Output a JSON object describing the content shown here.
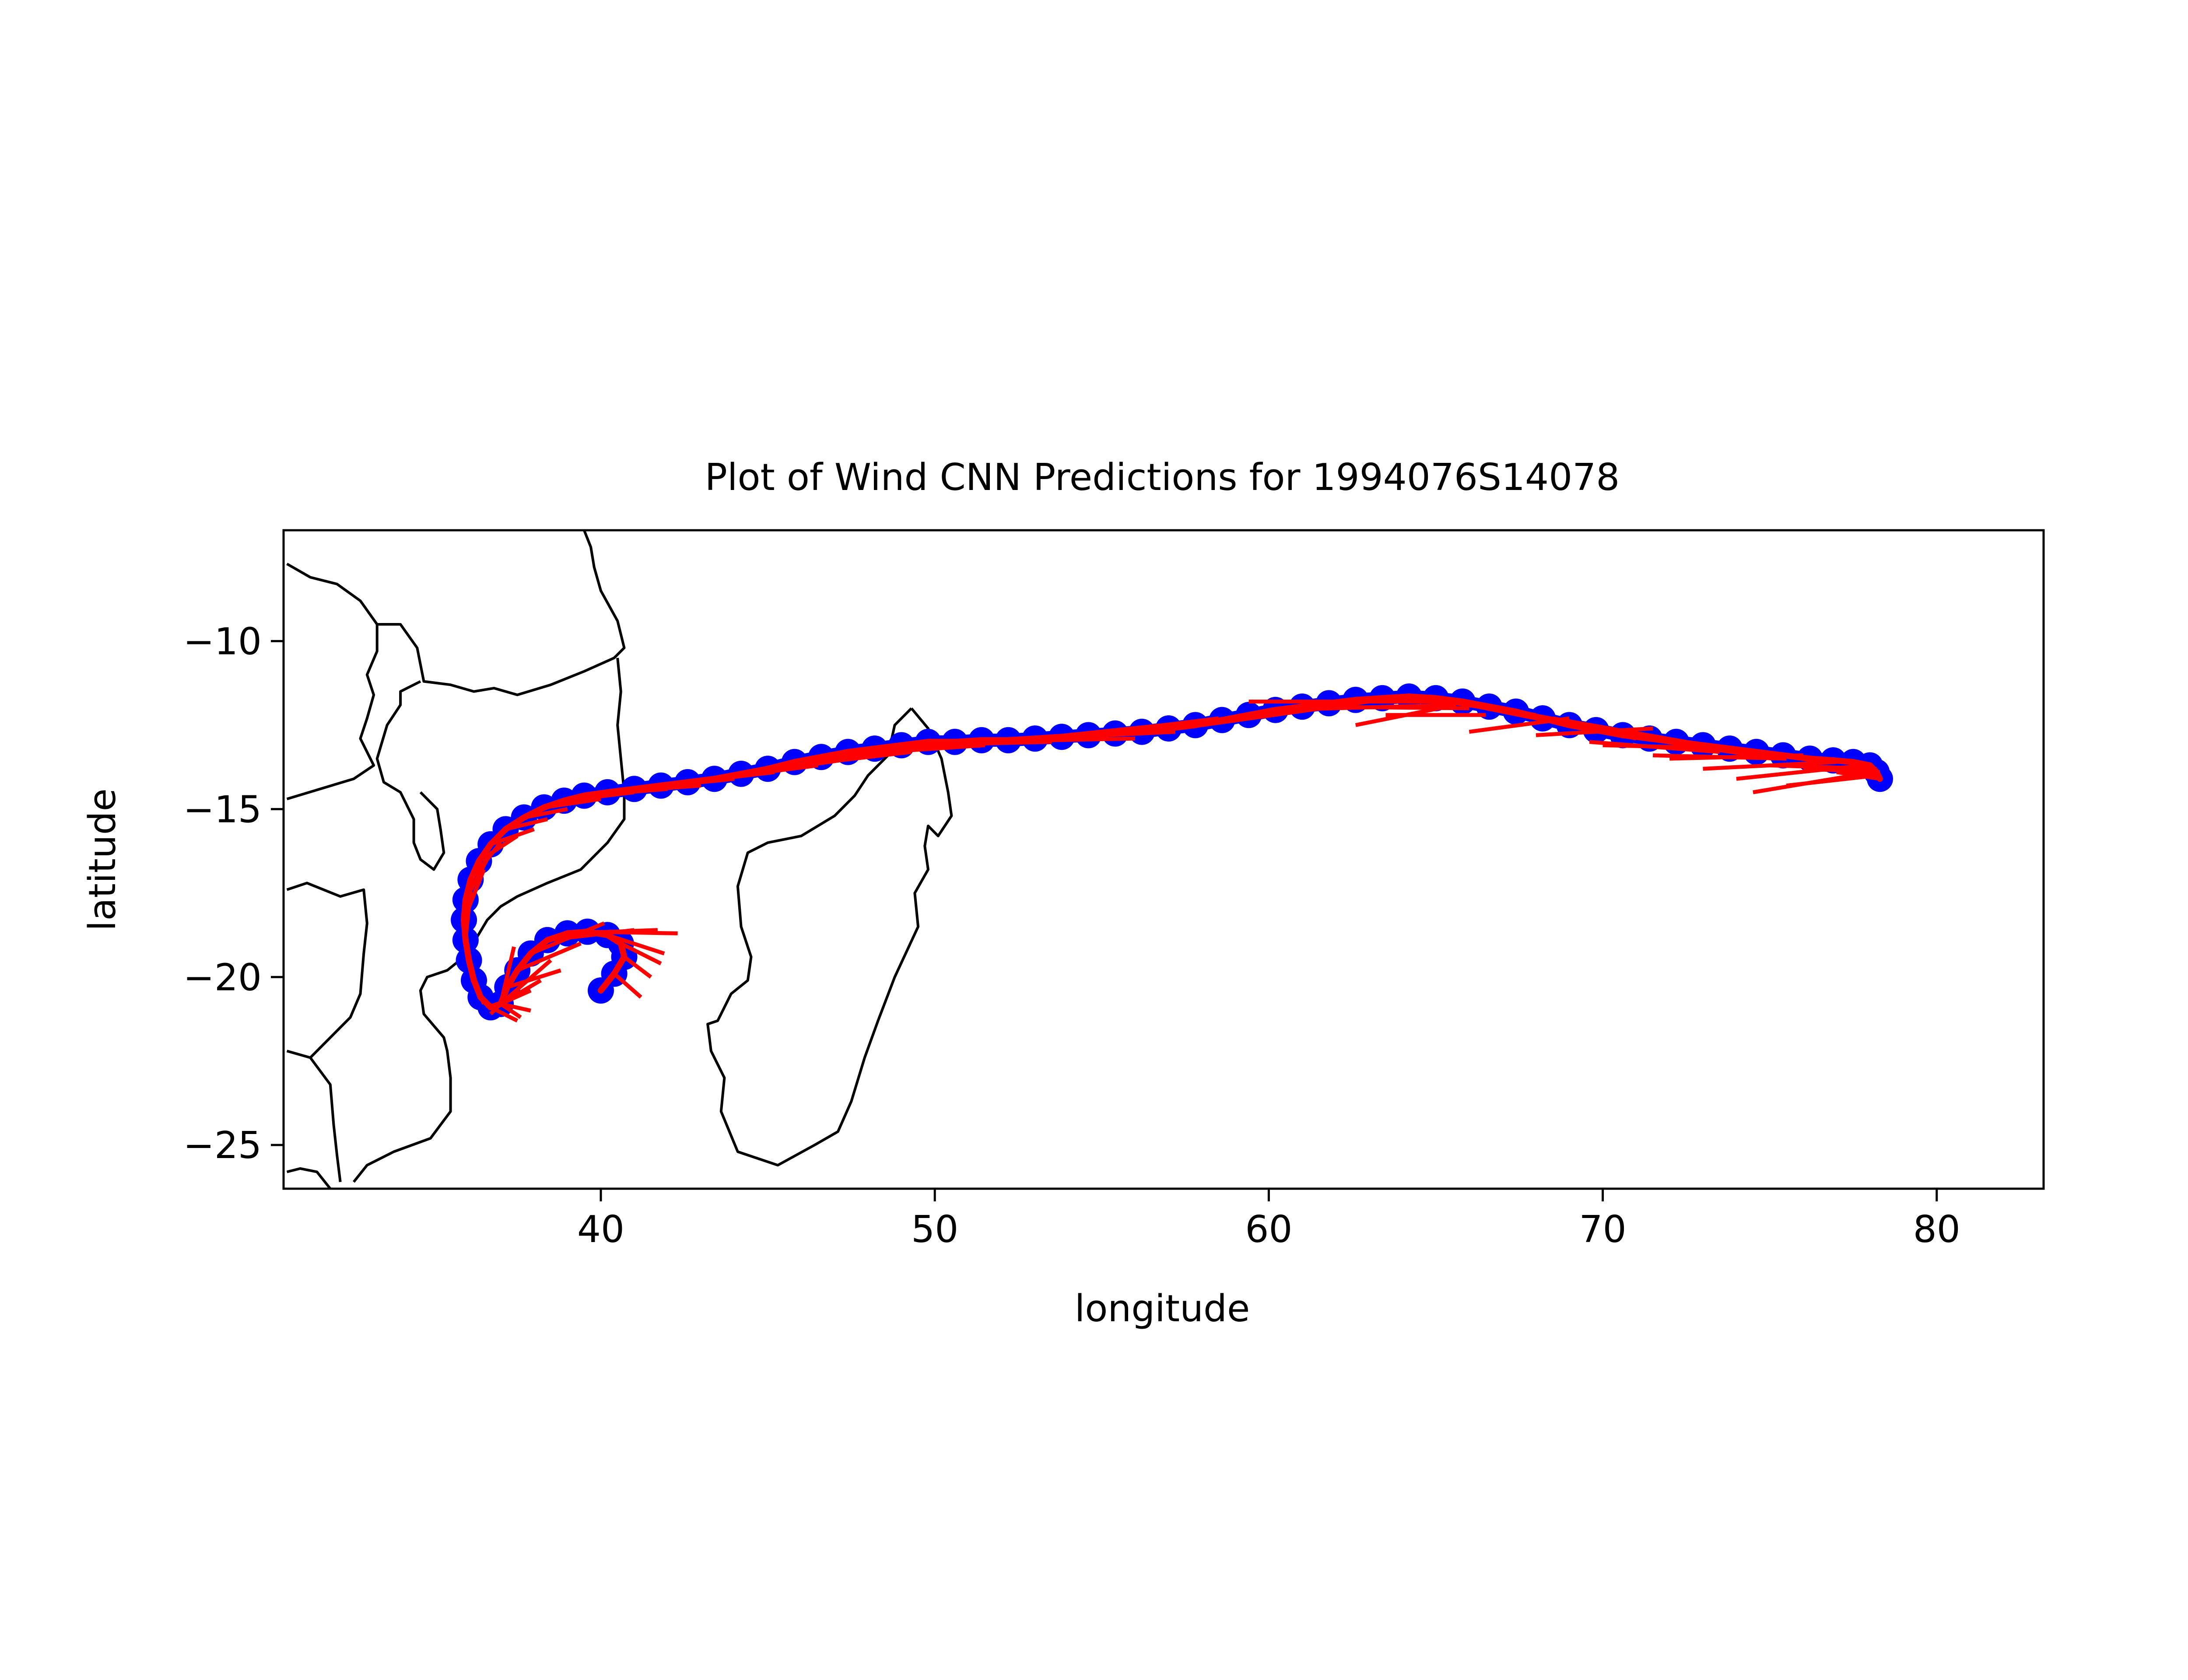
{
  "chart_data": {
    "type": "scatter",
    "title": "Plot of Wind CNN Predictions for 1994076S14078",
    "xlabel": "longitude",
    "ylabel": "latitude",
    "xlim": [
      30.5,
      83.2
    ],
    "ylim": [
      -26.3,
      -6.7
    ],
    "xticks": [
      40,
      50,
      60,
      70,
      80
    ],
    "yticks": [
      -10,
      -15,
      -20,
      -25
    ],
    "xtick_labels": [
      "40",
      "50",
      "60",
      "70",
      "80"
    ],
    "ytick_labels": [
      "−10",
      "−15",
      "−20",
      "−25"
    ],
    "grid": false,
    "legend": "none",
    "colors": {
      "track": "#0000ff",
      "prediction": "#ff0000",
      "coast": "#000000"
    },
    "track": [
      [
        40.0,
        -20.4
      ],
      [
        40.4,
        -19.9
      ],
      [
        40.7,
        -19.4
      ],
      [
        40.6,
        -19.0
      ],
      [
        40.2,
        -18.75
      ],
      [
        39.6,
        -18.65
      ],
      [
        39.0,
        -18.7
      ],
      [
        38.4,
        -18.9
      ],
      [
        37.9,
        -19.3
      ],
      [
        37.5,
        -19.8
      ],
      [
        37.2,
        -20.3
      ],
      [
        37.0,
        -20.8
      ],
      [
        36.7,
        -20.9
      ],
      [
        36.4,
        -20.6
      ],
      [
        36.2,
        -20.1
      ],
      [
        36.05,
        -19.5
      ],
      [
        35.95,
        -18.9
      ],
      [
        35.9,
        -18.3
      ],
      [
        35.95,
        -17.7
      ],
      [
        36.1,
        -17.1
      ],
      [
        36.35,
        -16.55
      ],
      [
        36.7,
        -16.05
      ],
      [
        37.15,
        -15.6
      ],
      [
        37.7,
        -15.25
      ],
      [
        38.3,
        -14.95
      ],
      [
        38.9,
        -14.75
      ],
      [
        39.5,
        -14.6
      ],
      [
        40.2,
        -14.5
      ],
      [
        41.0,
        -14.4
      ],
      [
        41.8,
        -14.3
      ],
      [
        42.6,
        -14.2
      ],
      [
        43.4,
        -14.1
      ],
      [
        44.2,
        -13.95
      ],
      [
        45.0,
        -13.8
      ],
      [
        45.8,
        -13.6
      ],
      [
        46.6,
        -13.45
      ],
      [
        47.4,
        -13.3
      ],
      [
        48.2,
        -13.2
      ],
      [
        49.0,
        -13.1
      ],
      [
        49.8,
        -13.0
      ],
      [
        50.6,
        -13.0
      ],
      [
        51.4,
        -12.95
      ],
      [
        52.2,
        -12.95
      ],
      [
        53.0,
        -12.9
      ],
      [
        53.8,
        -12.85
      ],
      [
        54.6,
        -12.8
      ],
      [
        55.4,
        -12.75
      ],
      [
        56.2,
        -12.7
      ],
      [
        57.0,
        -12.6
      ],
      [
        57.8,
        -12.5
      ],
      [
        58.6,
        -12.35
      ],
      [
        59.4,
        -12.2
      ],
      [
        60.2,
        -12.05
      ],
      [
        61.0,
        -11.95
      ],
      [
        61.8,
        -11.85
      ],
      [
        62.6,
        -11.75
      ],
      [
        63.4,
        -11.7
      ],
      [
        64.2,
        -11.65
      ],
      [
        65.0,
        -11.7
      ],
      [
        65.8,
        -11.8
      ],
      [
        66.6,
        -11.95
      ],
      [
        67.4,
        -12.1
      ],
      [
        68.2,
        -12.3
      ],
      [
        69.0,
        -12.5
      ],
      [
        69.8,
        -12.65
      ],
      [
        70.6,
        -12.8
      ],
      [
        71.4,
        -12.9
      ],
      [
        72.2,
        -13.0
      ],
      [
        73.0,
        -13.1
      ],
      [
        73.8,
        -13.2
      ],
      [
        74.6,
        -13.3
      ],
      [
        75.4,
        -13.4
      ],
      [
        76.2,
        -13.5
      ],
      [
        76.9,
        -13.55
      ],
      [
        77.5,
        -13.6
      ],
      [
        78.0,
        -13.7
      ],
      [
        78.2,
        -13.9
      ],
      [
        78.3,
        -14.1
      ]
    ],
    "predictions": [
      [
        37.0,
        -20.8,
        36.7,
        -21.1
      ],
      [
        37.0,
        -20.8,
        37.9,
        -20.4
      ],
      [
        37.0,
        -20.8,
        37.6,
        -21.2
      ],
      [
        37.0,
        -20.8,
        38.2,
        -20.1
      ],
      [
        37.0,
        -20.8,
        37.4,
        -19.1
      ],
      [
        37.0,
        -20.8,
        38.5,
        -19.5
      ],
      [
        37.2,
        -20.3,
        38.8,
        -19.8
      ],
      [
        37.5,
        -19.8,
        39.4,
        -19.0
      ],
      [
        37.9,
        -19.3,
        40.1,
        -18.4
      ],
      [
        38.4,
        -18.9,
        41.0,
        -18.6
      ],
      [
        39.0,
        -18.7,
        41.7,
        -18.6
      ],
      [
        39.6,
        -18.65,
        42.3,
        -18.7
      ],
      [
        40.2,
        -18.75,
        41.9,
        -19.3
      ],
      [
        40.6,
        -19.0,
        41.8,
        -19.6
      ],
      [
        40.7,
        -19.4,
        41.5,
        -20.0
      ],
      [
        40.4,
        -19.9,
        41.2,
        -20.6
      ],
      [
        37.0,
        -20.8,
        37.9,
        -21.0
      ],
      [
        36.7,
        -20.9,
        37.5,
        -21.3
      ],
      [
        36.2,
        -20.1,
        36.5,
        -20.8
      ],
      [
        35.95,
        -18.9,
        36.1,
        -17.4
      ],
      [
        35.9,
        -18.3,
        36.5,
        -16.8
      ],
      [
        35.95,
        -17.7,
        36.7,
        -16.3
      ],
      [
        36.1,
        -17.1,
        37.0,
        -16.0
      ],
      [
        36.35,
        -16.55,
        37.5,
        -15.8
      ],
      [
        36.7,
        -16.05,
        38.0,
        -15.6
      ],
      [
        37.15,
        -15.6,
        38.4,
        -15.3
      ],
      [
        37.7,
        -15.25,
        39.0,
        -15.0
      ],
      [
        38.3,
        -14.95,
        40.0,
        -14.7
      ],
      [
        38.9,
        -14.75,
        41.0,
        -14.5
      ],
      [
        39.5,
        -14.6,
        42.0,
        -14.4
      ],
      [
        40.2,
        -14.5,
        43.0,
        -14.3
      ],
      [
        41.0,
        -14.4,
        44.0,
        -14.1
      ],
      [
        41.8,
        -14.3,
        45.2,
        -13.9
      ],
      [
        42.6,
        -14.2,
        46.5,
        -13.7
      ],
      [
        43.4,
        -14.1,
        47.5,
        -13.5
      ],
      [
        44.2,
        -13.95,
        48.6,
        -13.3
      ],
      [
        45.0,
        -13.8,
        49.3,
        -13.3
      ],
      [
        46.0,
        -13.6,
        50.5,
        -13.1
      ],
      [
        47.0,
        -13.4,
        51.5,
        -13.1
      ],
      [
        48.0,
        -13.2,
        52.6,
        -13.0
      ],
      [
        49.0,
        -13.1,
        53.5,
        -13.0
      ],
      [
        50.0,
        -13.0,
        55.0,
        -12.9
      ],
      [
        51.0,
        -13.0,
        56.0,
        -12.9
      ],
      [
        52.0,
        -12.95,
        57.2,
        -12.7
      ],
      [
        53.0,
        -12.9,
        57.8,
        -12.4
      ],
      [
        54.0,
        -12.85,
        58.5,
        -12.3
      ],
      [
        55.0,
        -12.8,
        60.0,
        -12.2
      ],
      [
        56.0,
        -12.7,
        61.0,
        -12.0
      ],
      [
        57.0,
        -12.6,
        62.0,
        -11.9
      ],
      [
        58.0,
        -12.5,
        63.0,
        -11.8
      ],
      [
        59.4,
        -11.8,
        65.2,
        -11.8
      ],
      [
        60.2,
        -12.05,
        65.5,
        -11.9
      ],
      [
        61.0,
        -11.95,
        66.0,
        -12.0
      ],
      [
        62.6,
        -12.5,
        65.6,
        -11.9
      ],
      [
        63.5,
        -12.2,
        66.5,
        -12.2
      ],
      [
        64.2,
        -11.65,
        68.0,
        -12.2
      ],
      [
        65.0,
        -11.7,
        68.5,
        -12.4
      ],
      [
        66.0,
        -12.7,
        69.0,
        -12.3
      ],
      [
        66.6,
        -11.95,
        70.0,
        -12.6
      ],
      [
        67.4,
        -12.1,
        71.0,
        -12.9
      ],
      [
        68.0,
        -12.8,
        71.5,
        -12.6
      ],
      [
        68.5,
        -12.3,
        72.5,
        -13.0
      ],
      [
        69.0,
        -12.5,
        73.2,
        -13.1
      ],
      [
        69.6,
        -13.0,
        73.5,
        -13.3
      ],
      [
        70.0,
        -13.1,
        74.0,
        -13.2
      ],
      [
        70.6,
        -12.8,
        74.5,
        -13.4
      ],
      [
        71.5,
        -13.4,
        75.5,
        -13.5
      ],
      [
        72.0,
        -13.5,
        76.0,
        -13.4
      ],
      [
        73.0,
        -13.8,
        77.0,
        -13.6
      ],
      [
        74.0,
        -14.1,
        77.8,
        -13.7
      ],
      [
        74.5,
        -14.5,
        78.1,
        -13.9
      ],
      [
        75.0,
        -13.7,
        78.2,
        -13.8
      ],
      [
        75.5,
        -14.3,
        78.2,
        -14.0
      ],
      [
        76.0,
        -13.8,
        78.3,
        -13.9
      ],
      [
        77.0,
        -13.9,
        78.3,
        -14.1
      ]
    ],
    "coastlines": [
      [
        [
          30.6,
          -7.7
        ],
        [
          31.3,
          -8.1
        ],
        [
          32.1,
          -8.3
        ],
        [
          32.8,
          -8.8
        ],
        [
          33.3,
          -9.5
        ],
        [
          33.3,
          -10.3
        ],
        [
          33.0,
          -11.0
        ],
        [
          33.2,
          -11.6
        ],
        [
          33.0,
          -12.3
        ],
        [
          32.8,
          -12.9
        ],
        [
          33.2,
          -13.7
        ],
        [
          32.6,
          -14.1
        ],
        [
          30.6,
          -14.7
        ]
      ],
      [
        [
          33.3,
          -9.5
        ],
        [
          34.0,
          -9.5
        ],
        [
          34.5,
          -10.2
        ],
        [
          34.7,
          -11.2
        ],
        [
          35.5,
          -11.3
        ],
        [
          36.2,
          -11.5
        ],
        [
          36.8,
          -11.4
        ],
        [
          37.5,
          -11.6
        ],
        [
          38.5,
          -11.3
        ],
        [
          39.5,
          -10.9
        ],
        [
          40.4,
          -10.5
        ],
        [
          40.7,
          -10.2
        ],
        [
          40.5,
          -9.4
        ],
        [
          40.0,
          -8.5
        ],
        [
          39.8,
          -7.8
        ],
        [
          39.7,
          -7.2
        ],
        [
          39.5,
          -6.7
        ]
      ],
      [
        [
          40.5,
          -10.5
        ],
        [
          40.6,
          -11.5
        ],
        [
          40.5,
          -12.5
        ],
        [
          40.6,
          -13.5
        ],
        [
          40.7,
          -14.5
        ],
        [
          40.7,
          -15.3
        ],
        [
          40.2,
          -16.0
        ],
        [
          39.4,
          -16.8
        ],
        [
          38.4,
          -17.2
        ],
        [
          37.5,
          -17.6
        ],
        [
          37.0,
          -17.9
        ],
        [
          36.6,
          -18.3
        ],
        [
          36.3,
          -18.8
        ],
        [
          35.9,
          -19.4
        ],
        [
          35.4,
          -19.8
        ],
        [
          34.8,
          -20.0
        ],
        [
          34.6,
          -20.4
        ],
        [
          34.7,
          -21.1
        ],
        [
          35.3,
          -21.8
        ],
        [
          35.4,
          -22.2
        ],
        [
          35.5,
          -23.0
        ],
        [
          35.5,
          -24.0
        ],
        [
          34.9,
          -24.8
        ],
        [
          33.8,
          -25.2
        ],
        [
          33.0,
          -25.6
        ],
        [
          32.6,
          -26.1
        ]
      ],
      [
        [
          34.6,
          -14.5
        ],
        [
          35.1,
          -15.0
        ],
        [
          35.2,
          -15.6
        ],
        [
          35.3,
          -16.3
        ],
        [
          35.0,
          -16.8
        ],
        [
          34.6,
          -16.5
        ],
        [
          34.4,
          -16.0
        ],
        [
          34.4,
          -15.3
        ],
        [
          34.0,
          -14.5
        ],
        [
          33.5,
          -14.2
        ],
        [
          33.3,
          -13.5
        ],
        [
          33.6,
          -12.5
        ],
        [
          34.0,
          -11.9
        ],
        [
          34.0,
          -11.5
        ],
        [
          34.6,
          -11.2
        ]
      ],
      [
        [
          30.6,
          -17.4
        ],
        [
          31.2,
          -17.2
        ],
        [
          32.2,
          -17.6
        ],
        [
          32.9,
          -17.4
        ],
        [
          33.0,
          -18.4
        ],
        [
          32.9,
          -19.3
        ],
        [
          32.8,
          -20.5
        ],
        [
          32.5,
          -21.2
        ],
        [
          31.3,
          -22.4
        ],
        [
          30.6,
          -22.2
        ]
      ],
      [
        [
          31.3,
          -22.4
        ],
        [
          31.9,
          -23.2
        ],
        [
          32.0,
          -24.4
        ],
        [
          32.1,
          -25.3
        ],
        [
          32.2,
          -26.1
        ]
      ],
      [
        [
          30.6,
          -25.8
        ],
        [
          31.0,
          -25.7
        ],
        [
          31.5,
          -25.8
        ],
        [
          31.9,
          -26.3
        ]
      ],
      [
        [
          49.3,
          -12.0
        ],
        [
          49.8,
          -12.6
        ],
        [
          50.2,
          -13.5
        ],
        [
          50.4,
          -14.5
        ],
        [
          50.5,
          -15.2
        ],
        [
          50.1,
          -15.8
        ],
        [
          49.8,
          -15.5
        ],
        [
          49.7,
          -16.1
        ],
        [
          49.8,
          -16.8
        ],
        [
          49.4,
          -17.5
        ],
        [
          49.5,
          -18.5
        ],
        [
          48.8,
          -20.0
        ],
        [
          48.3,
          -21.3
        ],
        [
          47.9,
          -22.4
        ],
        [
          47.5,
          -23.7
        ],
        [
          47.1,
          -24.6
        ],
        [
          46.4,
          -25.0
        ],
        [
          45.3,
          -25.6
        ],
        [
          44.1,
          -25.2
        ],
        [
          43.6,
          -24.0
        ],
        [
          43.7,
          -23.0
        ],
        [
          43.3,
          -22.2
        ],
        [
          43.2,
          -21.4
        ],
        [
          43.5,
          -21.3
        ],
        [
          43.9,
          -20.5
        ],
        [
          44.4,
          -20.1
        ],
        [
          44.5,
          -19.4
        ],
        [
          44.2,
          -18.5
        ],
        [
          44.1,
          -17.3
        ],
        [
          44.4,
          -16.3
        ],
        [
          45.0,
          -16.0
        ],
        [
          46.0,
          -15.8
        ],
        [
          47.0,
          -15.2
        ],
        [
          47.6,
          -14.6
        ],
        [
          48.0,
          -14.0
        ],
        [
          48.6,
          -13.4
        ],
        [
          48.8,
          -12.5
        ],
        [
          49.3,
          -12.0
        ]
      ]
    ]
  }
}
